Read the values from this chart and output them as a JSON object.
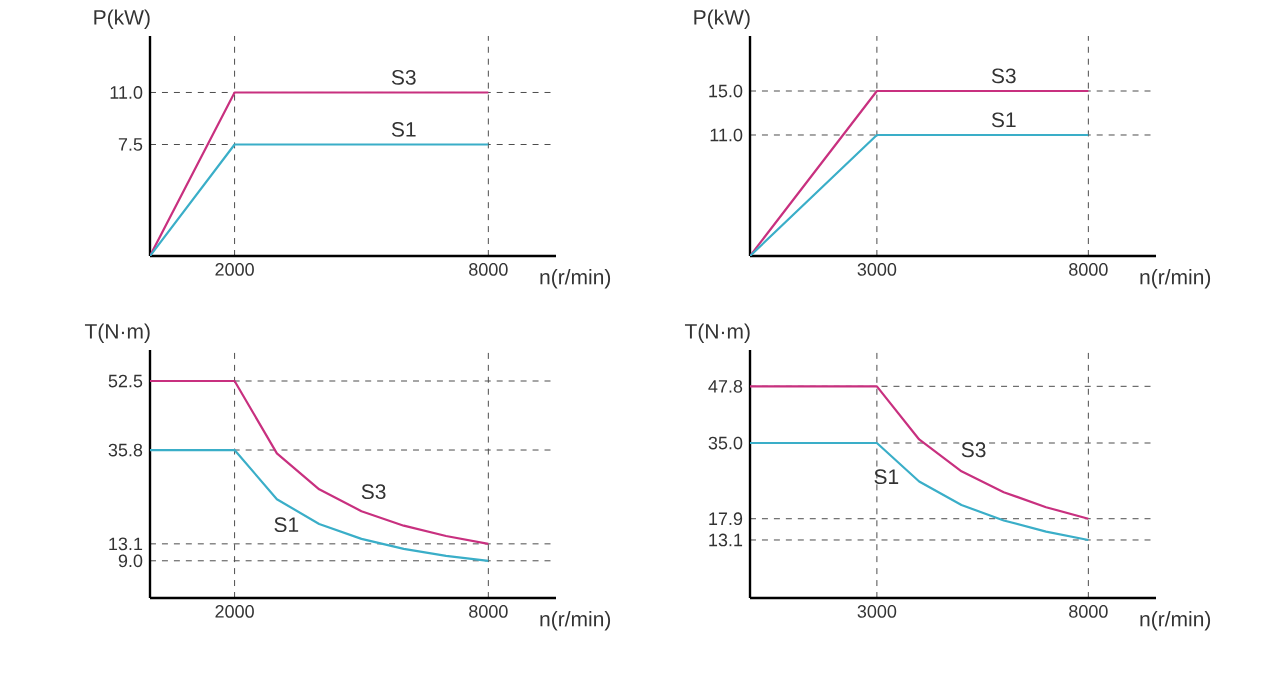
{
  "chart_data": [
    {
      "type": "line",
      "ylabel": "P(kW)",
      "xlabel": "n(r/min)",
      "xlim": [
        0,
        9600
      ],
      "ylim": [
        0,
        14.8
      ],
      "xticks": [
        2000,
        8000
      ],
      "yticks": [
        7.5,
        {
          "value": 11,
          "label": "11.0"
        }
      ],
      "grid": true,
      "series": [
        {
          "name": "S3",
          "color": "#c8307f",
          "x": [
            0,
            2000,
            8000
          ],
          "values": [
            0,
            11,
            11
          ]
        },
        {
          "name": "S1",
          "color": "#3aaec8",
          "x": [
            0,
            2000,
            8000
          ],
          "values": [
            0,
            7.5,
            7.5
          ]
        }
      ]
    },
    {
      "type": "line",
      "ylabel": "P(kW)",
      "xlabel": "n(r/min)",
      "xlim": [
        0,
        9600
      ],
      "ylim": [
        0,
        20
      ],
      "xticks": [
        3000,
        8000
      ],
      "yticks": [
        {
          "value": 11,
          "label": "11.0"
        },
        {
          "value": 15,
          "label": "15.0"
        }
      ],
      "grid": true,
      "series": [
        {
          "name": "S3",
          "color": "#c8307f",
          "x": [
            0,
            3000,
            8000
          ],
          "values": [
            0,
            15,
            15
          ]
        },
        {
          "name": "S1",
          "color": "#3aaec8",
          "x": [
            0,
            3000,
            8000
          ],
          "values": [
            0,
            11,
            11
          ]
        }
      ]
    },
    {
      "type": "line",
      "ylabel": "T(N·m)",
      "xlabel": "n(r/min)",
      "xlim": [
        0,
        9600
      ],
      "ylim": [
        0,
        60
      ],
      "xticks": [
        2000,
        8000
      ],
      "yticks": [
        {
          "value": 9,
          "label": "9.0"
        },
        13.1,
        35.8,
        52.5
      ],
      "grid": true,
      "series": [
        {
          "name": "S3",
          "color": "#c8307f",
          "x": [
            0,
            2000,
            3000,
            4000,
            5000,
            6000,
            7000,
            8000
          ],
          "values": [
            52.5,
            52.5,
            35.0,
            26.3,
            21.0,
            17.5,
            15.0,
            13.1
          ]
        },
        {
          "name": "S1",
          "color": "#3aaec8",
          "x": [
            0,
            2000,
            3000,
            4000,
            5000,
            6000,
            7000,
            8000
          ],
          "values": [
            35.8,
            35.8,
            23.9,
            17.9,
            14.3,
            11.9,
            10.2,
            9.0
          ]
        }
      ]
    },
    {
      "type": "line",
      "ylabel": "T(N·m)",
      "xlabel": "n(r/min)",
      "xlim": [
        0,
        9600
      ],
      "ylim": [
        0,
        56
      ],
      "xticks": [
        3000,
        8000
      ],
      "yticks": [
        13.1,
        17.9,
        {
          "value": 35,
          "label": "35.0"
        },
        47.8
      ],
      "grid": true,
      "series": [
        {
          "name": "S3",
          "color": "#c8307f",
          "x": [
            0,
            3000,
            4000,
            5000,
            6000,
            7000,
            8000
          ],
          "values": [
            47.8,
            47.8,
            35.8,
            28.6,
            23.9,
            20.5,
            17.9
          ]
        },
        {
          "name": "S1",
          "color": "#3aaec8",
          "x": [
            0,
            3000,
            4000,
            5000,
            6000,
            7000,
            8000
          ],
          "values": [
            35.0,
            35.0,
            26.3,
            21.0,
            17.5,
            15.0,
            13.1
          ]
        }
      ]
    }
  ]
}
